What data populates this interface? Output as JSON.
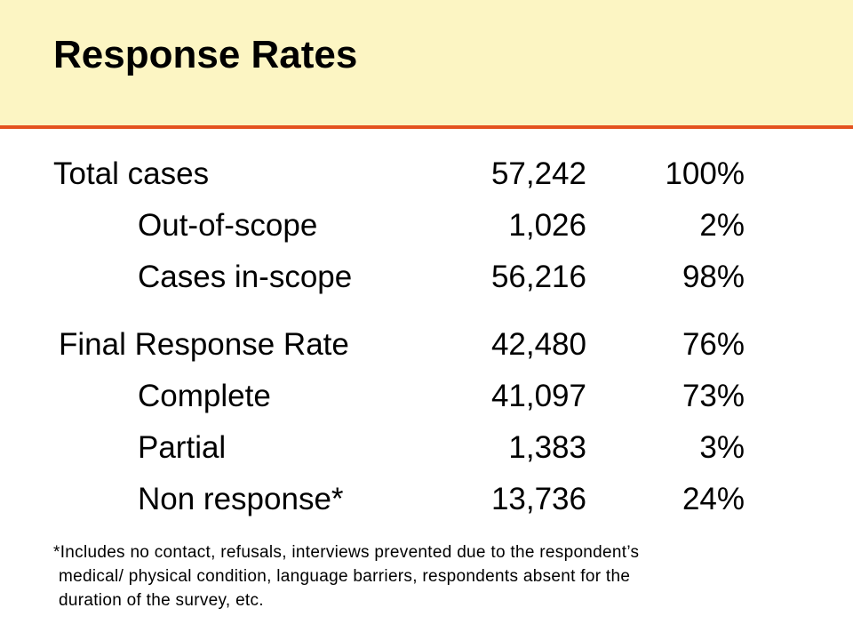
{
  "slide": {
    "title": "Response Rates",
    "colors": {
      "header_background": "#fcf5c3",
      "header_rule": "#e4521f"
    }
  },
  "table": {
    "rows": [
      {
        "label": "Total cases",
        "count": "57,242",
        "percent": "100%"
      },
      {
        "label": "Out-of-scope",
        "count": "1,026",
        "percent": "2%"
      },
      {
        "label": "Cases in-scope",
        "count": "56,216",
        "percent": "98%"
      },
      {
        "label": "Final Response Rate",
        "count": "42,480",
        "percent": "76%"
      },
      {
        "label": "Complete",
        "count": "41,097",
        "percent": "73%"
      },
      {
        "label": "Partial",
        "count": "1,383",
        "percent": "3%"
      },
      {
        "label": "Non response*",
        "count": "13,736",
        "percent": "24%"
      }
    ]
  },
  "footnote": {
    "lines": [
      "*Includes no contact, refusals, interviews prevented due to the respondent’s",
      "medical/ physical condition, language barriers, respondents absent for the",
      "duration of the survey, etc."
    ]
  }
}
